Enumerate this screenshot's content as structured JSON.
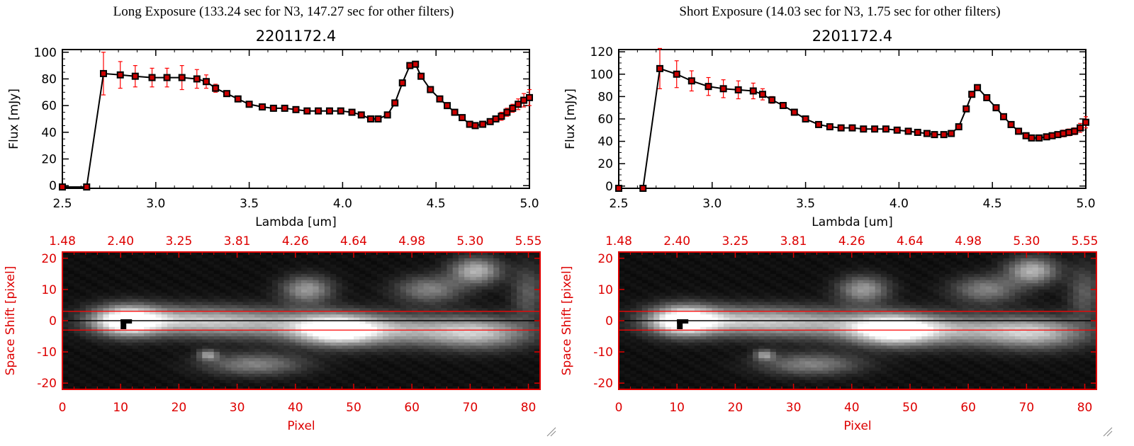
{
  "panels": [
    {
      "header": "Long Exposure (133.24 sec for N3, 147.27 sec for other filters)",
      "spectrum": {
        "type": "line",
        "title": "2201172.4",
        "xlabel": "Lambda [um]",
        "ylabel": "Flux [mJy]",
        "xlim": [
          2.5,
          5.0
        ],
        "ylim": [
          -2,
          102
        ],
        "xticks": [
          "2.5",
          "3.0",
          "3.5",
          "4.0",
          "4.5",
          "5.0"
        ],
        "yticks": [
          "0",
          "20",
          "40",
          "60",
          "80",
          "100"
        ],
        "x": [
          2.5,
          2.63,
          2.72,
          2.81,
          2.89,
          2.98,
          3.06,
          3.14,
          3.22,
          3.27,
          3.32,
          3.38,
          3.44,
          3.5,
          3.57,
          3.63,
          3.69,
          3.75,
          3.81,
          3.87,
          3.93,
          3.99,
          4.05,
          4.1,
          4.15,
          4.19,
          4.24,
          4.28,
          4.32,
          4.36,
          4.39,
          4.42,
          4.47,
          4.52,
          4.56,
          4.6,
          4.64,
          4.68,
          4.71,
          4.75,
          4.79,
          4.82,
          4.85,
          4.88,
          4.91,
          4.94,
          4.97,
          5.0
        ],
        "y": [
          -1,
          -1,
          84,
          83,
          82,
          81,
          81,
          81,
          80,
          78,
          73,
          69,
          65,
          61,
          59,
          58,
          58,
          57,
          56,
          56,
          56,
          56,
          55,
          53,
          50,
          50,
          53,
          62,
          77,
          90,
          91,
          82,
          72,
          65,
          60,
          55,
          51,
          46,
          45,
          46,
          48,
          50,
          52,
          55,
          58,
          61,
          64,
          66
        ],
        "yerr": [
          0,
          0,
          16,
          10,
          8,
          7,
          7,
          9,
          7,
          5,
          3,
          2,
          2,
          2,
          2,
          2,
          2,
          2,
          2,
          2,
          2,
          2,
          2,
          2,
          2,
          2,
          2,
          2,
          2,
          2,
          2,
          2,
          2,
          2,
          2,
          2,
          2,
          2,
          2,
          2,
          2,
          2,
          3,
          3,
          3,
          4,
          5,
          6
        ]
      },
      "image": {
        "type": "heatmap",
        "ylabel": "Space Shift [pixel]",
        "xlabel": "Pixel",
        "xlim": [
          0,
          82
        ],
        "ylim": [
          -22,
          22
        ],
        "xticks": [
          "0",
          "10",
          "20",
          "30",
          "40",
          "50",
          "60",
          "70",
          "80"
        ],
        "yticks": [
          "-20",
          "-10",
          "0",
          "10",
          "20"
        ],
        "top_ticks": [
          "1.48",
          "2.40",
          "3.25",
          "3.81",
          "4.26",
          "4.64",
          "4.98",
          "5.30",
          "5.55"
        ],
        "aperture": [
          -3,
          3
        ]
      }
    },
    {
      "header": "Short Exposure (14.03 sec for N3, 1.75 sec for other filters)",
      "spectrum": {
        "type": "line",
        "title": "2201172.4",
        "xlabel": "Lambda [um]",
        "ylabel": "Flux [mJy]",
        "xlim": [
          2.5,
          5.0
        ],
        "ylim": [
          -2,
          122
        ],
        "xticks": [
          "2.5",
          "3.0",
          "3.5",
          "4.0",
          "4.5",
          "5.0"
        ],
        "yticks": [
          "0",
          "20",
          "40",
          "60",
          "80",
          "100",
          "120"
        ],
        "x": [
          2.5,
          2.63,
          2.72,
          2.81,
          2.89,
          2.98,
          3.06,
          3.14,
          3.22,
          3.27,
          3.32,
          3.38,
          3.44,
          3.5,
          3.57,
          3.63,
          3.69,
          3.75,
          3.81,
          3.87,
          3.93,
          3.99,
          4.05,
          4.1,
          4.15,
          4.19,
          4.24,
          4.28,
          4.32,
          4.36,
          4.39,
          4.42,
          4.47,
          4.52,
          4.56,
          4.6,
          4.64,
          4.68,
          4.71,
          4.75,
          4.79,
          4.82,
          4.85,
          4.88,
          4.91,
          4.94,
          4.97,
          5.0
        ],
        "y": [
          -2,
          -2,
          105,
          100,
          94,
          89,
          87,
          86,
          85,
          82,
          77,
          72,
          66,
          60,
          55,
          53,
          52,
          52,
          51,
          51,
          51,
          50,
          49,
          48,
          47,
          46,
          46,
          47,
          53,
          69,
          82,
          88,
          79,
          70,
          62,
          55,
          49,
          45,
          43,
          43,
          44,
          45,
          46,
          47,
          48,
          49,
          52,
          57
        ],
        "yerr": [
          0,
          0,
          18,
          12,
          9,
          8,
          8,
          8,
          7,
          5,
          3,
          2,
          2,
          2,
          2,
          2,
          2,
          2,
          2,
          2,
          2,
          2,
          2,
          2,
          2,
          2,
          2,
          2,
          2,
          2,
          2,
          2,
          2,
          2,
          2,
          2,
          2,
          2,
          2,
          2,
          2,
          2,
          2,
          3,
          3,
          3,
          4,
          5
        ]
      },
      "image": {
        "type": "heatmap",
        "ylabel": "Space Shift [pixel]",
        "xlabel": "Pixel",
        "xlim": [
          0,
          82
        ],
        "ylim": [
          -22,
          22
        ],
        "xticks": [
          "0",
          "10",
          "20",
          "30",
          "40",
          "50",
          "60",
          "70",
          "80"
        ],
        "yticks": [
          "-20",
          "-10",
          "0",
          "10",
          "20"
        ],
        "top_ticks": [
          "1.48",
          "2.40",
          "3.25",
          "3.81",
          "4.26",
          "4.64",
          "4.98",
          "5.30",
          "5.55"
        ],
        "aperture": [
          -3,
          3
        ]
      }
    }
  ],
  "colors": {
    "axis": "#000000",
    "error": "#ff0000",
    "marker": "#cc0000",
    "image_axis": "#dd0000",
    "aperture": "#ff0000"
  }
}
